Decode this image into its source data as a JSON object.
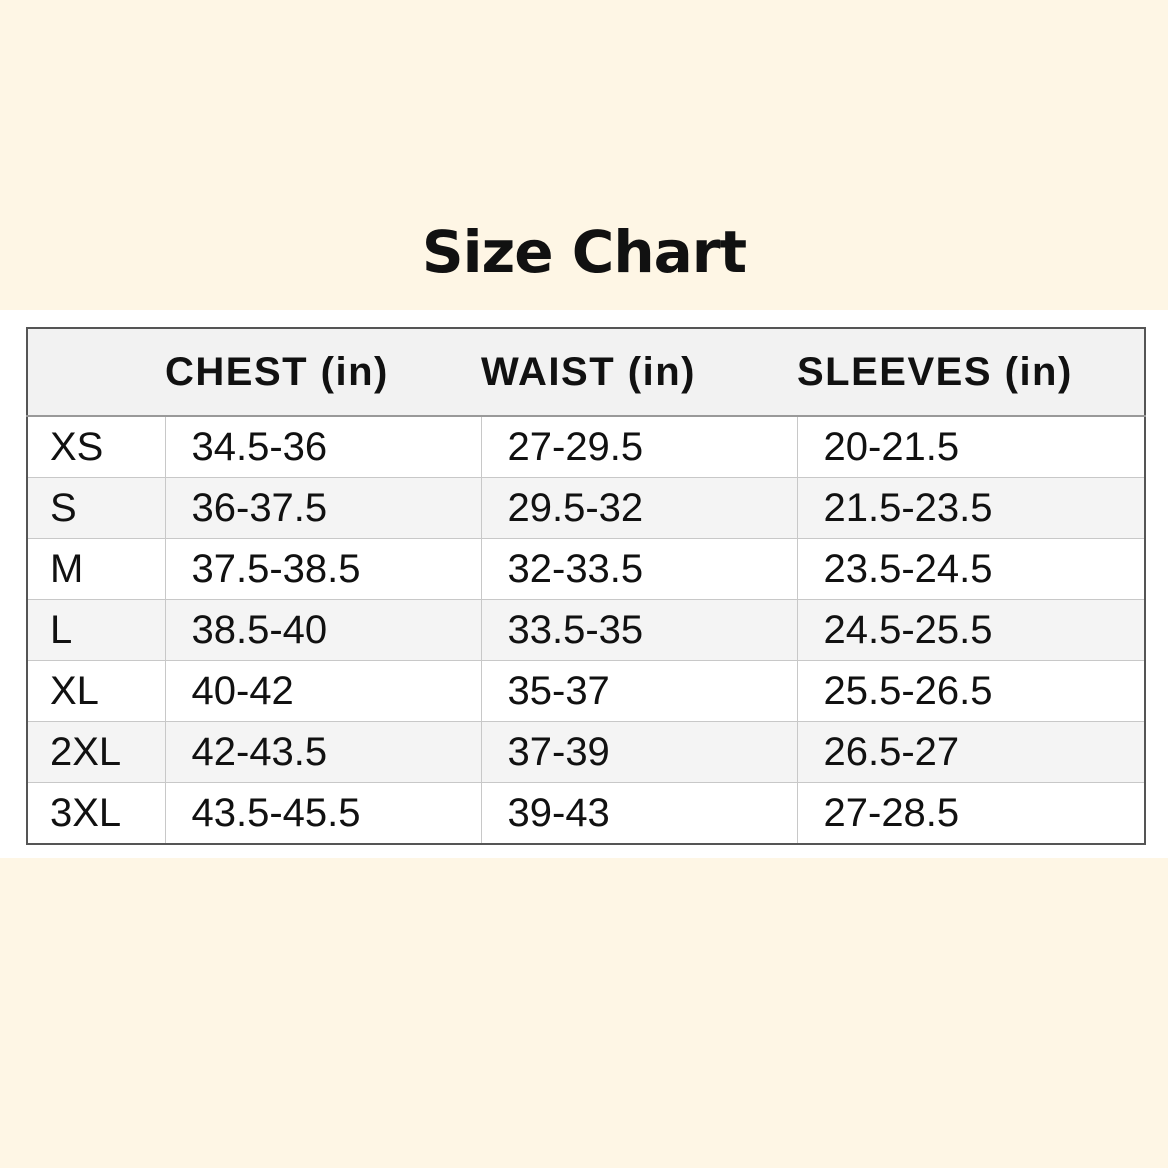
{
  "title": "Size Chart",
  "headers": [
    "",
    "CHEST (in)",
    "WAIST (in)",
    "SLEEVES (in)"
  ],
  "rows": [
    [
      "XS",
      "34.5-36",
      "27-29.5",
      "20-21.5"
    ],
    [
      "S",
      "36-37.5",
      "29.5-32",
      "21.5-23.5"
    ],
    [
      "M",
      "37.5-38.5",
      "32-33.5",
      "23.5-24.5"
    ],
    [
      "L",
      "38.5-40",
      "33.5-35",
      "24.5-25.5"
    ],
    [
      "XL",
      "40-42",
      "35-37",
      "25.5-26.5"
    ],
    [
      "2XL",
      "42-43.5",
      "37-39",
      "26.5-27"
    ],
    [
      "3XL",
      "43.5-45.5",
      "39-43",
      "27-28.5"
    ]
  ]
}
